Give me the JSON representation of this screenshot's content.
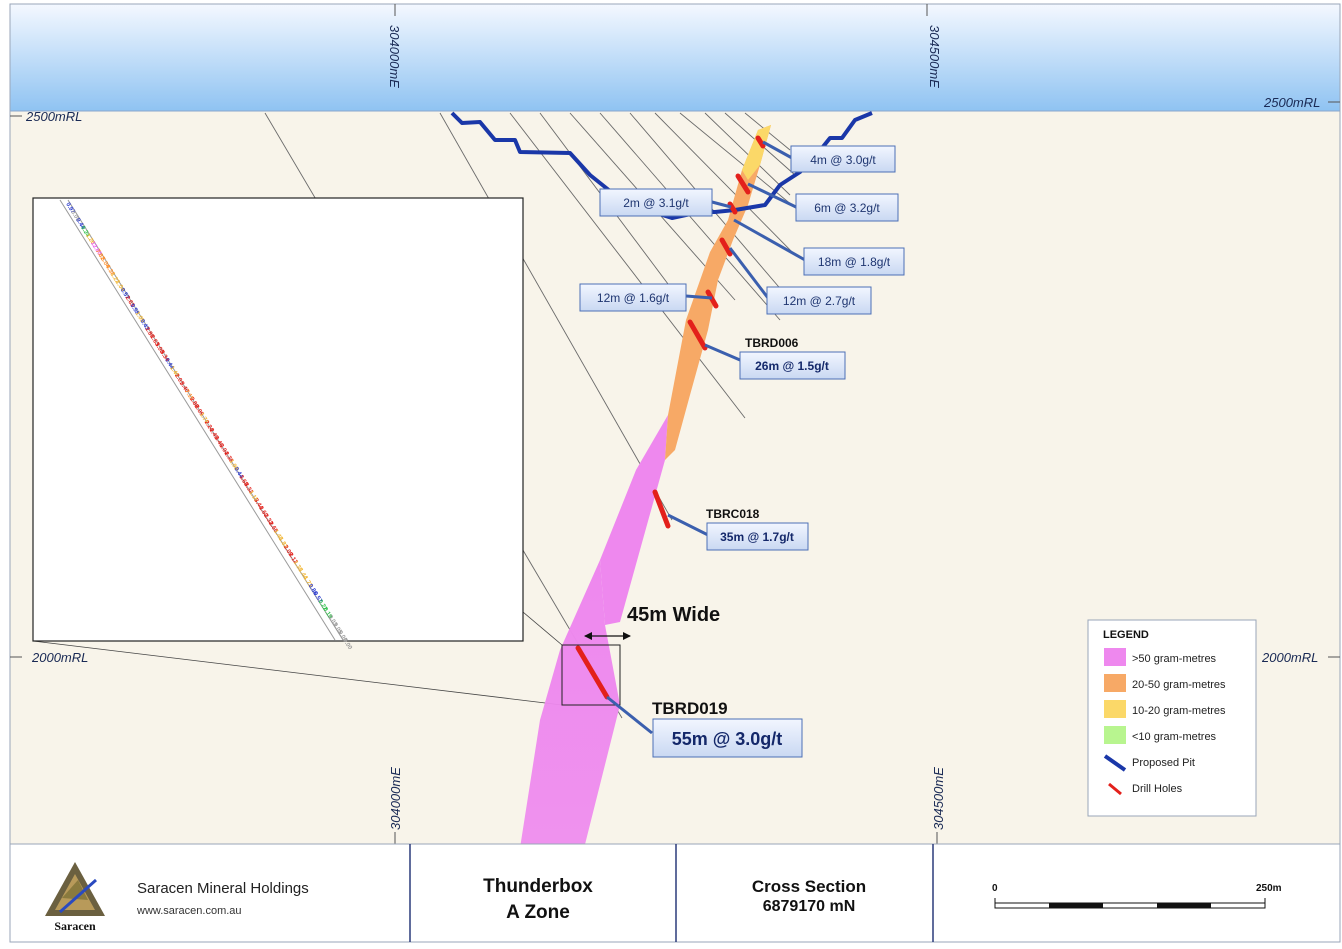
{
  "axes": {
    "easting_top": [
      "304000mE",
      "304500mE"
    ],
    "easting_bottom": [
      "304000mE",
      "304500mE"
    ],
    "rl_left": [
      "2500mRL",
      "2000mRL"
    ],
    "rl_right": [
      "2500mRL",
      "2000mRL"
    ]
  },
  "callouts": [
    {
      "text": "4m @ 3.0g/t"
    },
    {
      "text": "2m @ 3.1g/t"
    },
    {
      "text": "6m @ 3.2g/t"
    },
    {
      "text": "18m @ 1.8g/t"
    },
    {
      "text": "12m @ 1.6g/t"
    },
    {
      "text": "12m @ 2.7g/t"
    }
  ],
  "holes": [
    {
      "name": "TBRD006",
      "intercept": "26m @ 1.5g/t"
    },
    {
      "name": "TBRC018",
      "intercept": "35m @ 1.7g/t"
    },
    {
      "name": "TBRD019",
      "intercept": "55m @ 3.0g/t"
    }
  ],
  "width_label": "45m Wide",
  "legend": {
    "title": "LEGEND",
    "items": [
      {
        "label": ">50 gram-metres",
        "color": "#ee88ee"
      },
      {
        "label": "20-50 gram-metres",
        "color": "#f7a966"
      },
      {
        "label": "10-20 gram-metres",
        "color": "#fbd868"
      },
      {
        "label": "<10 gram-metres",
        "color": "#b8f58f"
      },
      {
        "label": "Proposed Pit",
        "color": "#1a37a8"
      },
      {
        "label": "Drill Holes",
        "color": "#e3201b"
      }
    ]
  },
  "inset_assays": [
    "0.97",
    "0.05",
    "0.44",
    "0.24",
    "1.26",
    "12.80",
    "7.82",
    "5.04",
    "4.38",
    "1.22",
    "1.04",
    "0.57",
    "2.63",
    "0.58",
    "1.05",
    "0.43",
    "2.86",
    "2.63",
    "3.08",
    "3.34",
    "0.44",
    "1.40",
    "2.01",
    "3.40",
    "7.15",
    "2.88",
    "2.09",
    "1.76",
    "2.24",
    "2.49",
    "3.46",
    "3.04",
    "2.38",
    "1.00",
    "0.44",
    "3.68",
    "3.32",
    "1.15",
    "3.44",
    "2.60",
    "2.32",
    "2.65",
    "1.48",
    "1.83",
    "2.09",
    "2.12",
    "1.38",
    "1.44",
    "1.73",
    "0.86",
    "0.57",
    "0.22",
    "0.19",
    "0.03",
    "0.05",
    "0.00",
    "0.00"
  ],
  "footer": {
    "company": "Saracen Mineral Holdings",
    "website": "www.saracen.com.au",
    "logo_text": "Saracen",
    "project_line1": "Thunderbox",
    "project_line2": "A Zone",
    "section_line1": "Cross Section",
    "section_line2": "6879170 mN",
    "scale_start": "0",
    "scale_end": "250m"
  }
}
